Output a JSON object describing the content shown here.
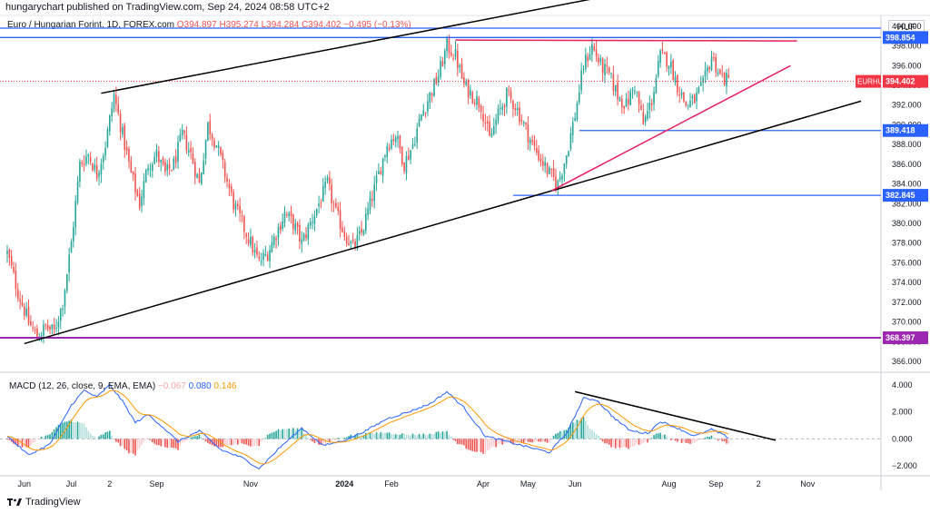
{
  "header": {
    "publisher_text": "hungarychart published on TradingView.com, Sep 24, 2024 08:58 UTC+2"
  },
  "symbol": {
    "title": "Euro / Hungarian Forint, 1D, FOREX.com",
    "ohlc": "O394.897 H395.274 L394.284 C394.402 −0.495 (−0.13%)"
  },
  "currency": "HUF",
  "macd_legend": {
    "label": "MACD (12, 26, close, 9, EMA, EMA)",
    "hist_value": "−0.067",
    "macd_value": "0.080",
    "signal_value": "0.146"
  },
  "footer": {
    "brand": "TradingView"
  },
  "colors": {
    "up": "#26a69a",
    "down": "#ef5350",
    "blue_line": "#2962ff",
    "purple_line": "#9c27b0",
    "pink_line": "#e91e63",
    "black_line": "#000000",
    "last_price": "#f23645"
  },
  "chart_data": {
    "type": "candlestick",
    "symbol": "EURHUF",
    "y_axis_ticks": [
      "400.000",
      "398.000",
      "396.000",
      "394.000",
      "392.000",
      "390.000",
      "388.000",
      "386.000",
      "384.000",
      "382.000",
      "380.000",
      "378.000",
      "376.000",
      "374.000",
      "372.000",
      "370.000",
      "368.000",
      "366.000"
    ],
    "ylim": [
      366,
      401
    ],
    "macd_ticks": [
      "4.000",
      "2.000",
      "0.000",
      "−2.000"
    ],
    "macd_ylim": [
      -2.6,
      4.4
    ],
    "x_ticks": [
      {
        "label": "Jun",
        "bar": 8
      },
      {
        "label": "Jul",
        "bar": 30
      },
      {
        "label": "2",
        "bar": 48
      },
      {
        "label": "Sep",
        "bar": 70
      },
      {
        "label": "Nov",
        "bar": 114
      },
      {
        "label": "2024",
        "bar": 158
      },
      {
        "label": "Feb",
        "bar": 180
      },
      {
        "label": "Apr",
        "bar": 223
      },
      {
        "label": "May",
        "bar": 244
      },
      {
        "label": "Jun",
        "bar": 266
      },
      {
        "label": "Aug",
        "bar": 310
      },
      {
        "label": "Sep",
        "bar": 332
      },
      {
        "label": "2",
        "bar": 352
      },
      {
        "label": "Nov",
        "bar": 375
      }
    ],
    "horizontal_levels": [
      {
        "value": 404.2,
        "color": "blue",
        "label": ""
      },
      {
        "value": 398.854,
        "color": "blue",
        "label": "398.854"
      },
      {
        "value": 389.418,
        "color": "blue",
        "label": "389.418",
        "start_bar": 268
      },
      {
        "value": 382.845,
        "color": "blue",
        "label": "382.845",
        "start_bar": 237
      },
      {
        "value": 368.397,
        "color": "purple",
        "label": "368.397"
      }
    ],
    "last_price": {
      "label": "EURHUF",
      "value": "394.402",
      "price": 394.402
    },
    "trendlines": [
      {
        "color": "black",
        "from": [
          44,
          393.2
        ],
        "to": [
          323,
          404.8
        ]
      },
      {
        "color": "black",
        "from": [
          8,
          367.8
        ],
        "to": [
          400,
          392.4
        ]
      },
      {
        "color": "pink",
        "from": [
          210,
          398.6
        ],
        "to": [
          370,
          398.5
        ]
      },
      {
        "color": "pink",
        "from": [
          255,
          383.3
        ],
        "to": [
          367,
          396.0
        ]
      }
    ],
    "macd_trendline": {
      "color": "black",
      "from": [
        266,
        3.5
      ],
      "to": [
        360,
        -0.1
      ]
    },
    "anchors": [
      [
        0,
        377
      ],
      [
        5,
        373
      ],
      [
        10,
        370
      ],
      [
        14,
        368.4
      ],
      [
        18,
        369.5
      ],
      [
        22,
        369
      ],
      [
        26,
        372
      ],
      [
        30,
        378
      ],
      [
        34,
        386
      ],
      [
        38,
        387
      ],
      [
        42,
        385
      ],
      [
        46,
        388
      ],
      [
        50,
        393
      ],
      [
        54,
        389
      ],
      [
        58,
        385
      ],
      [
        62,
        382
      ],
      [
        66,
        386
      ],
      [
        70,
        387
      ],
      [
        74,
        385
      ],
      [
        78,
        386
      ],
      [
        82,
        389
      ],
      [
        86,
        387
      ],
      [
        90,
        384
      ],
      [
        94,
        390
      ],
      [
        98,
        388
      ],
      [
        102,
        385
      ],
      [
        106,
        382
      ],
      [
        110,
        380
      ],
      [
        114,
        378
      ],
      [
        118,
        376
      ],
      [
        122,
        377
      ],
      [
        126,
        379
      ],
      [
        130,
        381
      ],
      [
        134,
        380
      ],
      [
        138,
        378
      ],
      [
        142,
        380
      ],
      [
        146,
        382
      ],
      [
        150,
        384
      ],
      [
        154,
        381
      ],
      [
        158,
        379
      ],
      [
        162,
        377.5
      ],
      [
        166,
        379
      ],
      [
        170,
        382
      ],
      [
        174,
        385
      ],
      [
        178,
        388
      ],
      [
        182,
        389
      ],
      [
        186,
        386
      ],
      [
        190,
        388
      ],
      [
        194,
        391
      ],
      [
        198,
        393
      ],
      [
        202,
        395
      ],
      [
        206,
        398
      ],
      [
        210,
        397
      ],
      [
        214,
        394
      ],
      [
        218,
        393
      ],
      [
        222,
        392
      ],
      [
        226,
        388.5
      ],
      [
        230,
        391
      ],
      [
        234,
        393
      ],
      [
        238,
        392
      ],
      [
        242,
        390
      ],
      [
        246,
        388
      ],
      [
        250,
        386.5
      ],
      [
        254,
        385
      ],
      [
        258,
        384
      ],
      [
        262,
        387
      ],
      [
        266,
        391
      ],
      [
        270,
        396
      ],
      [
        274,
        398
      ],
      [
        278,
        396
      ],
      [
        282,
        395
      ],
      [
        286,
        393
      ],
      [
        290,
        392
      ],
      [
        294,
        394
      ],
      [
        298,
        390
      ],
      [
        302,
        392.5
      ],
      [
        306,
        397
      ],
      [
        310,
        396.5
      ],
      [
        314,
        394
      ],
      [
        318,
        392
      ],
      [
        322,
        392.5
      ],
      [
        326,
        394
      ],
      [
        330,
        397
      ],
      [
        334,
        395
      ],
      [
        338,
        394.4
      ]
    ],
    "macd_anchors": [
      [
        0,
        0.2
      ],
      [
        10,
        -1.2
      ],
      [
        20,
        -0.4
      ],
      [
        30,
        2.5
      ],
      [
        36,
        3.6
      ],
      [
        42,
        3.1
      ],
      [
        48,
        4.0
      ],
      [
        54,
        2.8
      ],
      [
        60,
        1.2
      ],
      [
        66,
        1.8
      ],
      [
        72,
        1.0
      ],
      [
        80,
        -0.2
      ],
      [
        90,
        0.6
      ],
      [
        100,
        -0.8
      ],
      [
        110,
        -1.4
      ],
      [
        118,
        -2.2
      ],
      [
        128,
        -0.6
      ],
      [
        138,
        0.8
      ],
      [
        148,
        -0.5
      ],
      [
        158,
        -0.1
      ],
      [
        168,
        0.6
      ],
      [
        178,
        1.5
      ],
      [
        188,
        2.0
      ],
      [
        198,
        2.6
      ],
      [
        206,
        3.5
      ],
      [
        214,
        2.3
      ],
      [
        224,
        0.2
      ],
      [
        234,
        -0.2
      ],
      [
        244,
        -0.6
      ],
      [
        254,
        -1.0
      ],
      [
        262,
        0.4
      ],
      [
        270,
        3.0
      ],
      [
        276,
        2.9
      ],
      [
        284,
        1.6
      ],
      [
        292,
        0.6
      ],
      [
        300,
        0.4
      ],
      [
        306,
        1.3
      ],
      [
        314,
        0.8
      ],
      [
        322,
        0.2
      ],
      [
        330,
        0.7
      ],
      [
        338,
        0.1
      ]
    ]
  }
}
